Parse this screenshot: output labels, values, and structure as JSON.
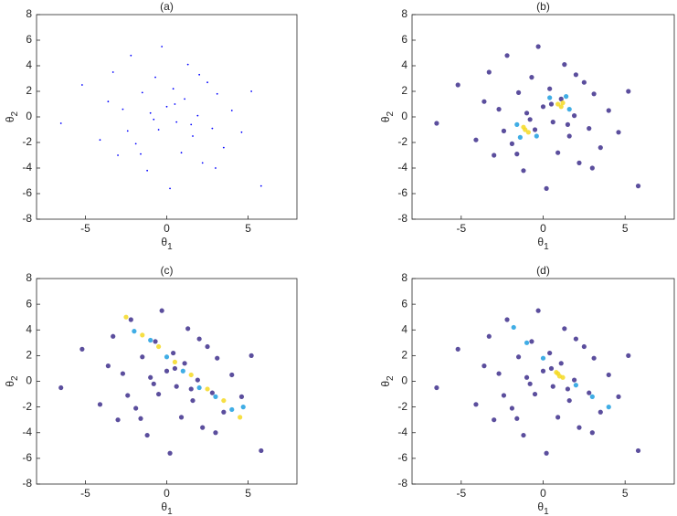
{
  "chart_data": [
    {
      "type": "scatter",
      "title": "(a)",
      "xlabel": "θ",
      "xlabel_sub": "1",
      "ylabel": "θ",
      "ylabel_sub": "2",
      "marker": "point",
      "xlim": [
        -8,
        8
      ],
      "ylim": [
        -8,
        8
      ],
      "xticks": [
        -5,
        0,
        5
      ],
      "yticks": [
        -8,
        -6,
        -4,
        -2,
        0,
        2,
        4,
        6,
        8
      ],
      "series": [
        {
          "color": "#0000ff",
          "x": [
            -6.5,
            -5.2,
            -4.1,
            -3.6,
            -3.0,
            -2.7,
            -2.2,
            -1.9,
            -1.5,
            -1.2,
            -1.0,
            -0.7,
            -0.5,
            -0.3,
            0,
            0.2,
            0.4,
            0.6,
            0.9,
            1.1,
            1.3,
            1.6,
            1.9,
            2.2,
            2.5,
            2.8,
            3.1,
            3.5,
            4.0,
            4.6,
            5.2,
            5.8,
            -2.4,
            -0.8,
            0.5,
            1.5,
            -1.6,
            2.0,
            -3.3,
            3.0
          ],
          "values": [
            -0.5,
            2.5,
            -1.8,
            1.2,
            -3.0,
            0.6,
            4.8,
            -2.1,
            1.9,
            -4.2,
            0.3,
            3.1,
            -1.0,
            5.5,
            0.8,
            -5.6,
            2.2,
            -0.4,
            -2.8,
            1.4,
            4.1,
            -1.5,
            0.1,
            -3.6,
            2.7,
            -0.9,
            1.8,
            -2.4,
            0.5,
            -1.2,
            2.0,
            -5.4,
            -1.1,
            -0.2,
            1.0,
            -0.6,
            -2.9,
            3.3,
            3.5,
            -4.0
          ]
        }
      ]
    },
    {
      "type": "scatter",
      "title": "(b)",
      "xlabel": "θ",
      "xlabel_sub": "1",
      "ylabel": "θ",
      "ylabel_sub": "2",
      "marker": "circle",
      "xlim": [
        -8,
        8
      ],
      "ylim": [
        -8,
        8
      ],
      "xticks": [
        -5,
        0,
        5
      ],
      "yticks": [
        -8,
        -6,
        -4,
        -2,
        0,
        2,
        4,
        6,
        8
      ],
      "series": [
        {
          "color": "#3e2f8c",
          "x": [
            -6.5,
            -5.2,
            -4.1,
            -3.6,
            -3.0,
            -2.7,
            -2.2,
            -1.9,
            -1.5,
            -1.2,
            -1.0,
            -0.7,
            -0.5,
            -0.3,
            0,
            0.2,
            0.4,
            0.6,
            0.9,
            1.1,
            1.3,
            1.6,
            1.9,
            2.2,
            2.5,
            2.8,
            3.1,
            3.5,
            4.0,
            4.6,
            5.2,
            5.8,
            -2.4,
            -0.8,
            0.5,
            1.5,
            -1.6,
            2.0,
            -3.3,
            3.0
          ],
          "values": [
            -0.5,
            2.5,
            -1.8,
            1.2,
            -3.0,
            0.6,
            4.8,
            -2.1,
            1.9,
            -4.2,
            0.3,
            3.1,
            -1.0,
            5.5,
            0.8,
            -5.6,
            2.2,
            -0.4,
            -2.8,
            1.4,
            4.1,
            -1.5,
            0.1,
            -3.6,
            2.7,
            -0.9,
            1.8,
            -2.4,
            0.5,
            -1.2,
            2.0,
            -5.4,
            -1.1,
            -0.2,
            1.0,
            -0.6,
            -2.9,
            3.3,
            3.5,
            -4.0
          ]
        },
        {
          "color": "#1f9fe0",
          "x": [
            -1.6,
            -0.4,
            0.4,
            1.6,
            -1.4,
            1.4
          ],
          "values": [
            -0.6,
            -1.5,
            1.5,
            0.6,
            -1.6,
            1.6
          ]
        },
        {
          "color": "#f5d923",
          "x": [
            -1.1,
            -0.9,
            -1.2,
            0.9,
            1.1,
            1.2
          ],
          "values": [
            -1.0,
            -1.2,
            -0.8,
            1.0,
            0.8,
            1.1
          ]
        }
      ]
    },
    {
      "type": "scatter",
      "title": "(c)",
      "xlabel": "θ",
      "xlabel_sub": "1",
      "ylabel": "θ",
      "ylabel_sub": "2",
      "marker": "circle",
      "xlim": [
        -8,
        8
      ],
      "ylim": [
        -8,
        8
      ],
      "xticks": [
        -5,
        0,
        5
      ],
      "yticks": [
        -8,
        -6,
        -4,
        -2,
        0,
        2,
        4,
        6,
        8
      ],
      "series": [
        {
          "color": "#3e2f8c",
          "x": [
            -6.5,
            -5.2,
            -4.1,
            -3.6,
            -3.0,
            -2.7,
            -2.2,
            -1.9,
            -1.5,
            -1.2,
            -1.0,
            -0.7,
            -0.5,
            -0.3,
            0,
            0.2,
            0.4,
            0.6,
            0.9,
            1.1,
            1.3,
            1.6,
            1.9,
            2.2,
            2.5,
            2.8,
            3.1,
            3.5,
            4.0,
            4.6,
            5.2,
            5.8,
            -2.4,
            -0.8,
            0.5,
            1.5,
            -1.6,
            2.0,
            -3.3,
            3.0
          ],
          "values": [
            -0.5,
            2.5,
            -1.8,
            1.2,
            -3.0,
            0.6,
            4.8,
            -2.1,
            1.9,
            -4.2,
            0.3,
            3.1,
            -1.0,
            5.5,
            0.8,
            -5.6,
            2.2,
            -0.4,
            -2.8,
            1.4,
            4.1,
            -1.5,
            0.1,
            -3.6,
            2.7,
            -0.9,
            1.8,
            -2.4,
            0.5,
            -1.2,
            2.0,
            -5.4,
            -1.1,
            -0.2,
            1.0,
            -0.6,
            -2.9,
            3.3,
            3.5,
            -4.0
          ]
        },
        {
          "color": "#1f9fe0",
          "x": [
            -2,
            -1,
            0,
            1,
            2,
            3,
            4,
            4.7
          ],
          "values": [
            3.9,
            3.2,
            1.9,
            0.8,
            -0.5,
            -1.2,
            -2.2,
            -2.0
          ]
        },
        {
          "color": "#f5d923",
          "x": [
            -2.5,
            -1.5,
            -0.5,
            0.5,
            1.5,
            2.5,
            3.5,
            4.5
          ],
          "values": [
            5.0,
            3.6,
            2.7,
            1.5,
            0.5,
            -0.6,
            -1.5,
            -2.8
          ]
        }
      ]
    },
    {
      "type": "scatter",
      "title": "(d)",
      "xlabel": "θ",
      "xlabel_sub": "1",
      "ylabel": "θ",
      "ylabel_sub": "2",
      "marker": "circle",
      "xlim": [
        -8,
        8
      ],
      "ylim": [
        -8,
        8
      ],
      "xticks": [
        -5,
        0,
        5
      ],
      "yticks": [
        -8,
        -6,
        -4,
        -2,
        0,
        2,
        4,
        6,
        8
      ],
      "series": [
        {
          "color": "#3e2f8c",
          "x": [
            -6.5,
            -5.2,
            -4.1,
            -3.6,
            -3.0,
            -2.7,
            -2.2,
            -1.9,
            -1.5,
            -1.2,
            -1.0,
            -0.7,
            -0.5,
            -0.3,
            0,
            0.2,
            0.4,
            0.6,
            0.9,
            1.1,
            1.3,
            1.6,
            1.9,
            2.2,
            2.5,
            2.8,
            3.1,
            3.5,
            4.0,
            4.6,
            5.2,
            5.8,
            -2.4,
            -0.8,
            0.5,
            1.5,
            -1.6,
            2.0,
            -3.3,
            3.0
          ],
          "values": [
            -0.5,
            2.5,
            -1.8,
            1.2,
            -3.0,
            0.6,
            4.8,
            -2.1,
            1.9,
            -4.2,
            0.3,
            3.1,
            -1.0,
            5.5,
            0.8,
            -5.6,
            2.2,
            -0.4,
            -2.8,
            1.4,
            4.1,
            -1.5,
            0.1,
            -3.6,
            2.7,
            -0.9,
            1.8,
            -2.4,
            0.5,
            -1.2,
            2.0,
            -5.4,
            -1.1,
            -0.2,
            1.0,
            -0.6,
            -2.9,
            3.3,
            3.5,
            -4.0
          ]
        },
        {
          "color": "#1f9fe0",
          "x": [
            -1.8,
            -1,
            0,
            2,
            3,
            4
          ],
          "values": [
            4.2,
            3,
            1.8,
            -0.3,
            -1.2,
            -2.0
          ]
        },
        {
          "color": "#f5d923",
          "x": [
            0.8,
            1.0,
            1.2,
            0.9
          ],
          "values": [
            0.7,
            0.4,
            0.3,
            0.6
          ]
        }
      ]
    }
  ]
}
